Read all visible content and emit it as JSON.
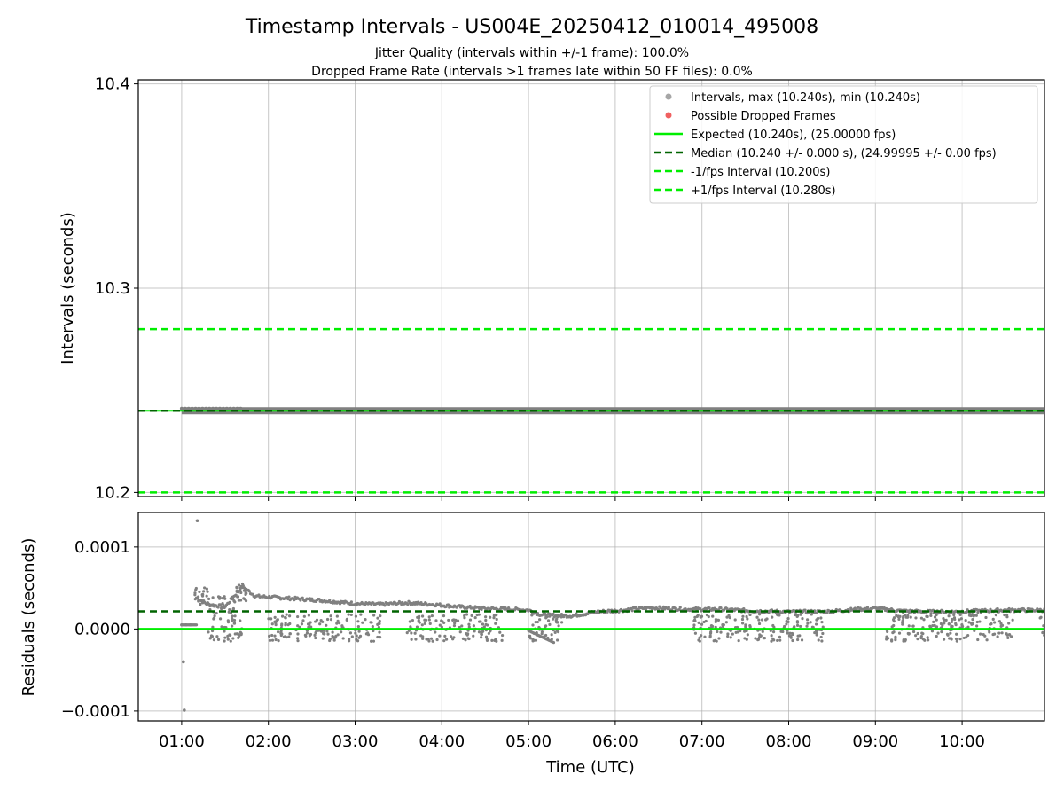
{
  "chart_data": [
    {
      "type": "scatter",
      "panel": "intervals",
      "title": "Timestamp Intervals - US004E_20250412_010014_495008",
      "subtitle_lines": [
        "Jitter Quality (intervals within +/-1 frame): 100.0%",
        "Dropped Frame Rate (intervals >1 frames late within 50 FF files): 0.0%"
      ],
      "ylabel": "Intervals (seconds)",
      "ylim": [
        10.198,
        10.402
      ],
      "yticks": [
        "10.2",
        "10.3",
        "10.4"
      ],
      "ytick_values": [
        10.2,
        10.3,
        10.4
      ],
      "grid": true,
      "legend_position": "top-right",
      "legend": [
        {
          "label": "Intervals, max (10.240s), min (10.240s)",
          "kind": "marker",
          "color": "#a6a6a6"
        },
        {
          "label": "Possible Dropped Frames",
          "kind": "marker",
          "color": "#f06060"
        },
        {
          "label": "Expected (10.240s), (25.00000 fps)",
          "kind": "solid",
          "color": "#00ee00"
        },
        {
          "label": "Median (10.240 +/- 0.000 s), (24.99995 +/- 0.00 fps)",
          "kind": "dashed",
          "color": "#006400"
        },
        {
          "label": "-1/fps Interval (10.200s)",
          "kind": "dashed",
          "color": "#00ee00"
        },
        {
          "label": "+1/fps Interval (10.280s)",
          "kind": "dashed",
          "color": "#00ee00"
        }
      ],
      "lines": {
        "expected": 10.24,
        "median": 10.24,
        "minus_one": 10.2,
        "plus_one": 10.28
      },
      "series": [
        {
          "name": "Intervals, max (10.240s), min (10.240s)",
          "x_start": "01:00",
          "x_end": "10:58",
          "value": 10.24,
          "color": "#808080"
        }
      ]
    },
    {
      "type": "scatter",
      "panel": "residuals",
      "xlabel": "Time (UTC)",
      "ylabel": "Residuals (seconds)",
      "xlim_hours": [
        0.5,
        10.95
      ],
      "xticks": [
        "01:00",
        "02:00",
        "03:00",
        "04:00",
        "05:00",
        "06:00",
        "07:00",
        "08:00",
        "09:00",
        "10:00"
      ],
      "xtick_values": [
        1,
        2,
        3,
        4,
        5,
        6,
        7,
        8,
        9,
        10
      ],
      "ylim": [
        -0.000112,
        0.000142
      ],
      "yticks": [
        "0.0001",
        "0.0000",
        "−0.0001"
      ],
      "ytick_values": [
        0.0001,
        0.0,
        -0.0001
      ],
      "grid": true,
      "lines": {
        "expected": 0.0,
        "median": 2.15e-05
      },
      "series": [
        {
          "name": "residuals-upper-band",
          "color": "#808080",
          "x_hours": [
            1.17,
            1.3,
            1.5,
            1.7,
            1.85,
            2.0,
            2.3,
            2.6,
            3.0,
            3.3,
            3.6,
            3.9,
            4.2,
            4.5,
            4.8,
            5.0,
            5.15,
            5.5,
            5.8,
            6.1,
            6.4,
            6.8,
            7.2,
            7.6,
            8.0,
            8.4,
            8.8,
            9.0,
            9.3,
            9.6,
            9.9,
            10.2,
            10.5,
            10.9
          ],
          "y": [
            3.8e-05,
            3e-05,
            2.7e-05,
            5.2e-05,
            4e-05,
            3.9e-05,
            3.7e-05,
            3.5e-05,
            3.1e-05,
            3e-05,
            3.2e-05,
            3e-05,
            2.7e-05,
            2.5e-05,
            2.4e-05,
            2.3e-05,
            1.7e-05,
            1.6e-05,
            2.1e-05,
            2.3e-05,
            2.6e-05,
            2.4e-05,
            2.4e-05,
            2.2e-05,
            2.1e-05,
            2.1e-05,
            2.4e-05,
            2.5e-05,
            2.2e-05,
            2.1e-05,
            2.1e-05,
            2.2e-05,
            2.3e-05,
            2.3e-05
          ]
        },
        {
          "name": "residuals-outliers",
          "color": "#808080",
          "x_hours": [
            1.02,
            1.03,
            1.18,
            1.0,
            1.05,
            1.1
          ],
          "y": [
            -4e-05,
            -9.9e-05,
            0.000132,
            5e-06,
            5e-06,
            5e-06
          ]
        },
        {
          "name": "residuals-lower-scatter",
          "color": "#808080",
          "regions_hours": [
            [
              1.3,
              1.7
            ],
            [
              2.0,
              3.3
            ],
            [
              3.6,
              4.7
            ],
            [
              5.0,
              5.4
            ],
            [
              6.9,
              8.4
            ],
            [
              9.1,
              10.6
            ],
            [
              10.9,
              10.95
            ]
          ],
          "y_range": [
            -1.5e-05,
            1.8e-05
          ]
        }
      ]
    }
  ]
}
